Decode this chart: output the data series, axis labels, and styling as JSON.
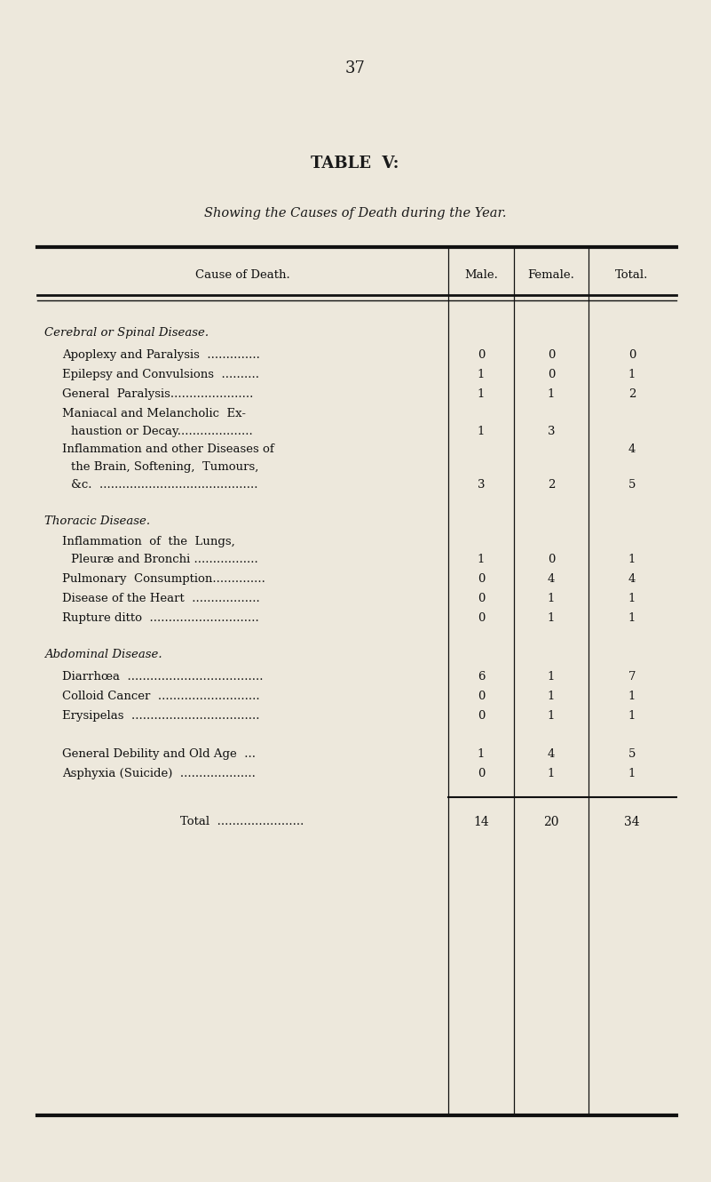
{
  "page_number": "37",
  "title": "TABLE  V:",
  "subtitle": "Showing the Causes of Death during the Year.",
  "bg_color": "#ede8dc",
  "col_headers": [
    "Cause of Death.",
    "Male.",
    "Female.",
    "Total."
  ],
  "figsize": [
    8.01,
    13.3
  ],
  "dpi": 100
}
